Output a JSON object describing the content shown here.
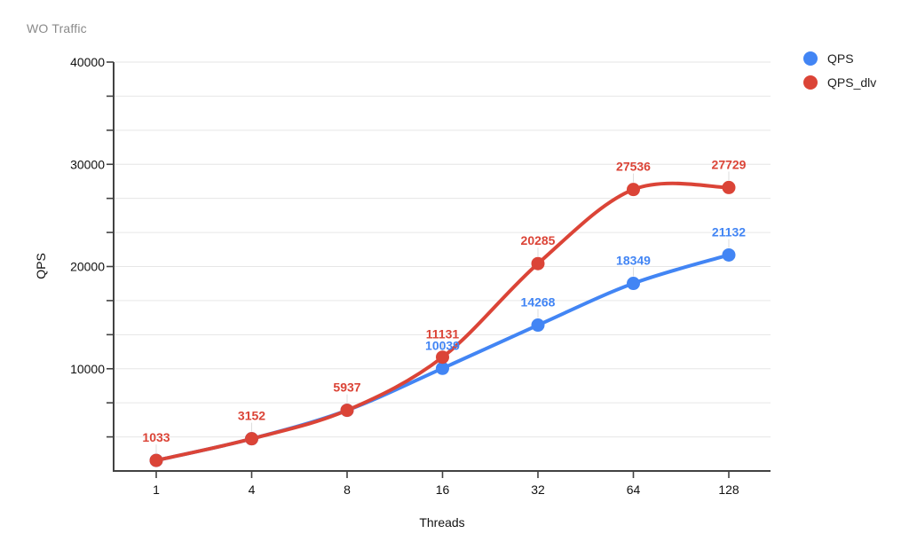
{
  "chart_data": {
    "type": "line",
    "smooth": true,
    "title": "WO Traffic",
    "xlabel": "Threads",
    "ylabel": "QPS",
    "categories": [
      "1",
      "4",
      "8",
      "16",
      "32",
      "64",
      "128"
    ],
    "ylim": [
      0,
      40000
    ],
    "y_major_ticks": [
      10000,
      20000,
      30000,
      40000
    ],
    "y_minor_step": 3333.3333,
    "grid": "horizontal-only",
    "legend_position": "top-right",
    "background": "#ffffff",
    "series": [
      {
        "name": "QPS",
        "color": "#4285F4",
        "values": [
          1033,
          3152,
          5937,
          10039,
          14268,
          18349,
          21132
        ],
        "point_labels": [
          "",
          "",
          "",
          "10039",
          "14268",
          "18349",
          "21132"
        ]
      },
      {
        "name": "QPS_dlv",
        "color": "#DB4437",
        "values": [
          1033,
          3152,
          5937,
          11131,
          20285,
          27536,
          27729
        ],
        "point_labels": [
          "1033",
          "3152",
          "5937",
          "11131",
          "20285",
          "27536",
          "27729"
        ]
      }
    ]
  }
}
